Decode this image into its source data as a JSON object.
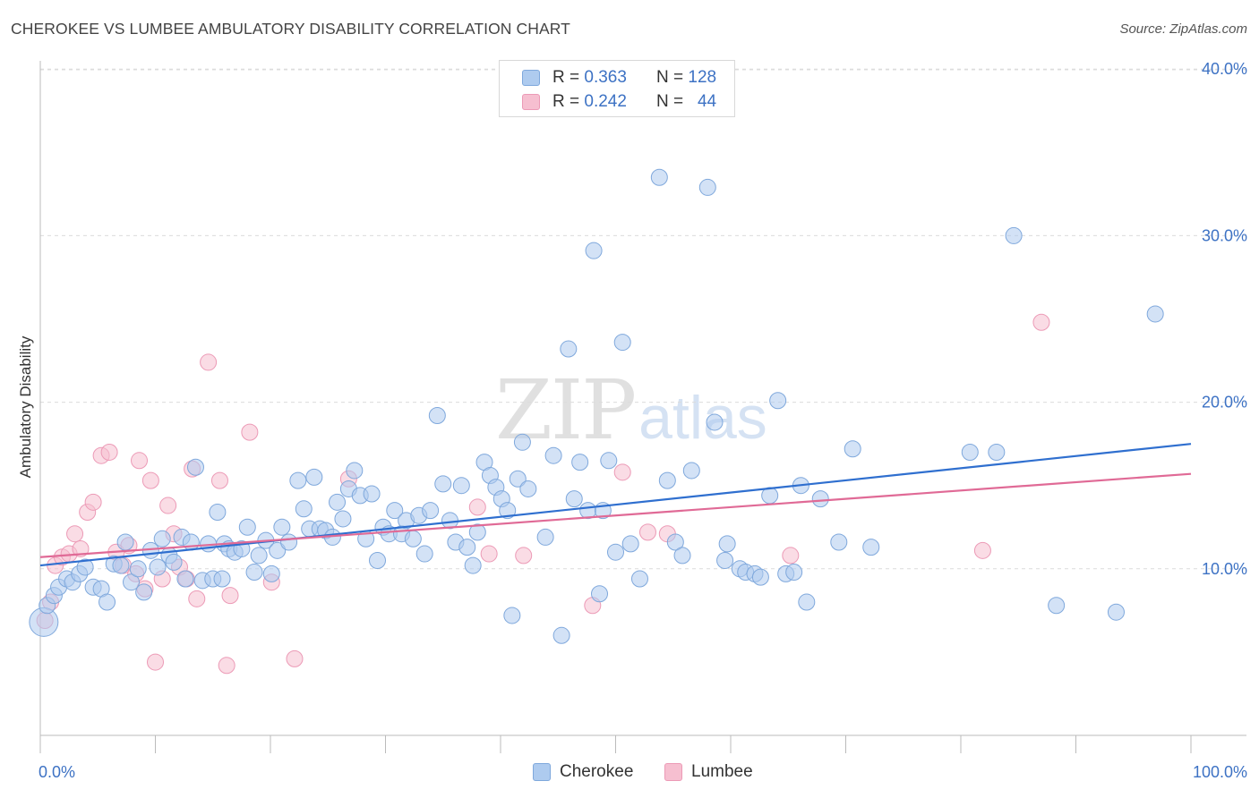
{
  "title": "CHEROKEE VS LUMBEE AMBULATORY DISABILITY CORRELATION CHART",
  "source": "Source: ZipAtlas.com",
  "watermark": {
    "zip": "ZIP",
    "atlas": "atlas"
  },
  "legend": {
    "rows": [
      {
        "r_label": "R = ",
        "r_value": "0.363",
        "n_label": "N = ",
        "n_value": "128"
      },
      {
        "r_label": "R = ",
        "r_value": "0.242",
        "n_label": "N = ",
        "n_value": "44"
      }
    ]
  },
  "colors": {
    "cherokee_fill": "#aecbef",
    "cherokee_stroke": "#7fa8dc",
    "cherokee_line": "#2f6fcf",
    "lumbee_fill": "#f6bfd0",
    "lumbee_stroke": "#ec9ab6",
    "lumbee_line": "#e06a96",
    "axis_text": "#3d72c4",
    "grid": "#dcdcdc"
  },
  "chart_data": {
    "type": "scatter",
    "title": "CHEROKEE VS LUMBEE AMBULATORY DISABILITY CORRELATION CHART",
    "xlabel": "",
    "ylabel": "Ambulatory Disability",
    "xlim": [
      0,
      100
    ],
    "ylim": [
      0,
      42
    ],
    "x_tick_labels": [
      "0.0%",
      "100.0%"
    ],
    "y_ticks": [
      10,
      20,
      30,
      40
    ],
    "y_tick_labels": [
      "10.0%",
      "20.0%",
      "30.0%",
      "40.0%"
    ],
    "grid": true,
    "legend_position": "bottom-center",
    "series": [
      {
        "name": "Cherokee",
        "R": 0.363,
        "N": 128,
        "trend": {
          "x": [
            0,
            100
          ],
          "y": [
            10.2,
            17.5
          ]
        },
        "points": [
          [
            0.3,
            6.8
          ],
          [
            0.6,
            7.8
          ],
          [
            1.2,
            8.4
          ],
          [
            1.6,
            8.9
          ],
          [
            2.3,
            9.4
          ],
          [
            2.8,
            9.2
          ],
          [
            3.4,
            9.7
          ],
          [
            3.9,
            10.1
          ],
          [
            4.6,
            8.9
          ],
          [
            5.3,
            8.8
          ],
          [
            5.8,
            8.0
          ],
          [
            6.4,
            10.3
          ],
          [
            7.0,
            10.2
          ],
          [
            7.4,
            11.6
          ],
          [
            7.9,
            9.2
          ],
          [
            8.5,
            10.0
          ],
          [
            9.0,
            8.6
          ],
          [
            9.6,
            11.1
          ],
          [
            10.2,
            10.1
          ],
          [
            10.6,
            11.8
          ],
          [
            11.2,
            10.8
          ],
          [
            11.6,
            10.4
          ],
          [
            12.3,
            11.9
          ],
          [
            12.6,
            9.4
          ],
          [
            13.1,
            11.6
          ],
          [
            13.5,
            16.1
          ],
          [
            14.1,
            9.3
          ],
          [
            14.6,
            11.5
          ],
          [
            15.0,
            9.4
          ],
          [
            15.4,
            13.4
          ],
          [
            16.0,
            11.5
          ],
          [
            16.4,
            11.2
          ],
          [
            16.9,
            11.0
          ],
          [
            17.5,
            11.2
          ],
          [
            18.0,
            12.5
          ],
          [
            18.6,
            9.8
          ],
          [
            19.0,
            10.8
          ],
          [
            19.6,
            11.7
          ],
          [
            20.1,
            9.7
          ],
          [
            20.6,
            11.1
          ],
          [
            21.0,
            12.5
          ],
          [
            21.6,
            11.6
          ],
          [
            22.4,
            15.3
          ],
          [
            22.9,
            13.6
          ],
          [
            23.4,
            12.4
          ],
          [
            23.8,
            15.5
          ],
          [
            24.3,
            12.4
          ],
          [
            24.8,
            12.3
          ],
          [
            25.4,
            11.9
          ],
          [
            25.8,
            14.0
          ],
          [
            26.3,
            13.0
          ],
          [
            26.8,
            14.8
          ],
          [
            27.3,
            15.9
          ],
          [
            27.8,
            14.4
          ],
          [
            28.3,
            11.8
          ],
          [
            28.8,
            14.5
          ],
          [
            29.3,
            10.5
          ],
          [
            29.8,
            12.5
          ],
          [
            30.3,
            12.1
          ],
          [
            30.8,
            13.5
          ],
          [
            31.4,
            12.1
          ],
          [
            31.8,
            12.9
          ],
          [
            32.4,
            11.8
          ],
          [
            32.9,
            13.2
          ],
          [
            33.4,
            10.9
          ],
          [
            33.9,
            13.5
          ],
          [
            34.5,
            19.2
          ],
          [
            35.0,
            15.1
          ],
          [
            35.6,
            12.9
          ],
          [
            36.1,
            11.6
          ],
          [
            36.6,
            15.0
          ],
          [
            37.1,
            11.3
          ],
          [
            37.6,
            10.2
          ],
          [
            38.0,
            12.2
          ],
          [
            38.6,
            16.4
          ],
          [
            39.1,
            15.6
          ],
          [
            39.6,
            14.9
          ],
          [
            40.1,
            14.2
          ],
          [
            40.6,
            13.5
          ],
          [
            41.0,
            7.2
          ],
          [
            41.5,
            15.4
          ],
          [
            41.9,
            17.6
          ],
          [
            42.4,
            14.8
          ],
          [
            43.9,
            11.9
          ],
          [
            44.6,
            16.8
          ],
          [
            45.3,
            6.0
          ],
          [
            45.9,
            23.2
          ],
          [
            46.4,
            14.2
          ],
          [
            46.9,
            16.4
          ],
          [
            47.6,
            13.5
          ],
          [
            48.1,
            29.1
          ],
          [
            48.6,
            8.5
          ],
          [
            48.9,
            13.5
          ],
          [
            49.4,
            16.5
          ],
          [
            50.0,
            11.0
          ],
          [
            50.6,
            23.6
          ],
          [
            51.3,
            11.5
          ],
          [
            52.1,
            9.4
          ],
          [
            53.8,
            33.5
          ],
          [
            54.5,
            15.3
          ],
          [
            55.2,
            11.6
          ],
          [
            55.8,
            10.8
          ],
          [
            56.6,
            15.9
          ],
          [
            58.0,
            32.9
          ],
          [
            58.6,
            18.8
          ],
          [
            59.5,
            10.5
          ],
          [
            60.8,
            10.0
          ],
          [
            61.3,
            9.8
          ],
          [
            62.1,
            9.7
          ],
          [
            62.6,
            9.5
          ],
          [
            63.4,
            14.4
          ],
          [
            64.1,
            20.1
          ],
          [
            64.8,
            9.7
          ],
          [
            65.5,
            9.8
          ],
          [
            66.1,
            15.0
          ],
          [
            66.6,
            8.0
          ],
          [
            67.8,
            14.2
          ],
          [
            69.4,
            11.6
          ],
          [
            70.6,
            17.2
          ],
          [
            72.2,
            11.3
          ],
          [
            80.8,
            17.0
          ],
          [
            84.6,
            30.0
          ],
          [
            88.3,
            7.8
          ],
          [
            93.5,
            7.4
          ],
          [
            96.9,
            25.3
          ],
          [
            83.1,
            17.0
          ],
          [
            59.7,
            11.5
          ],
          [
            15.8,
            9.4
          ]
        ]
      },
      {
        "name": "Lumbee",
        "R": 0.242,
        "N": 44,
        "trend": {
          "x": [
            0,
            100
          ],
          "y": [
            10.7,
            15.7
          ]
        },
        "points": [
          [
            0.4,
            6.9
          ],
          [
            0.9,
            8.0
          ],
          [
            1.3,
            10.2
          ],
          [
            1.9,
            10.7
          ],
          [
            2.5,
            10.9
          ],
          [
            3.0,
            12.1
          ],
          [
            3.5,
            11.2
          ],
          [
            4.1,
            13.4
          ],
          [
            4.6,
            14.0
          ],
          [
            5.3,
            16.8
          ],
          [
            6.0,
            17.0
          ],
          [
            6.6,
            11.0
          ],
          [
            7.2,
            10.2
          ],
          [
            7.7,
            11.4
          ],
          [
            8.3,
            9.7
          ],
          [
            8.6,
            16.5
          ],
          [
            9.1,
            8.8
          ],
          [
            9.6,
            15.3
          ],
          [
            10.0,
            4.4
          ],
          [
            10.6,
            9.4
          ],
          [
            11.1,
            13.8
          ],
          [
            11.6,
            12.1
          ],
          [
            12.1,
            10.1
          ],
          [
            12.7,
            9.4
          ],
          [
            13.2,
            16.0
          ],
          [
            13.6,
            8.2
          ],
          [
            14.6,
            22.4
          ],
          [
            15.6,
            15.3
          ],
          [
            16.2,
            4.2
          ],
          [
            16.5,
            8.4
          ],
          [
            18.2,
            18.2
          ],
          [
            20.1,
            9.2
          ],
          [
            22.1,
            4.6
          ],
          [
            26.8,
            15.4
          ],
          [
            38.0,
            13.7
          ],
          [
            39.0,
            10.9
          ],
          [
            42.0,
            10.8
          ],
          [
            48.0,
            7.8
          ],
          [
            50.6,
            15.8
          ],
          [
            52.8,
            12.2
          ],
          [
            54.5,
            12.1
          ],
          [
            65.2,
            10.8
          ],
          [
            81.9,
            11.1
          ],
          [
            87.0,
            24.8
          ]
        ]
      }
    ]
  },
  "bottom_legend": [
    "Cherokee",
    "Lumbee"
  ]
}
